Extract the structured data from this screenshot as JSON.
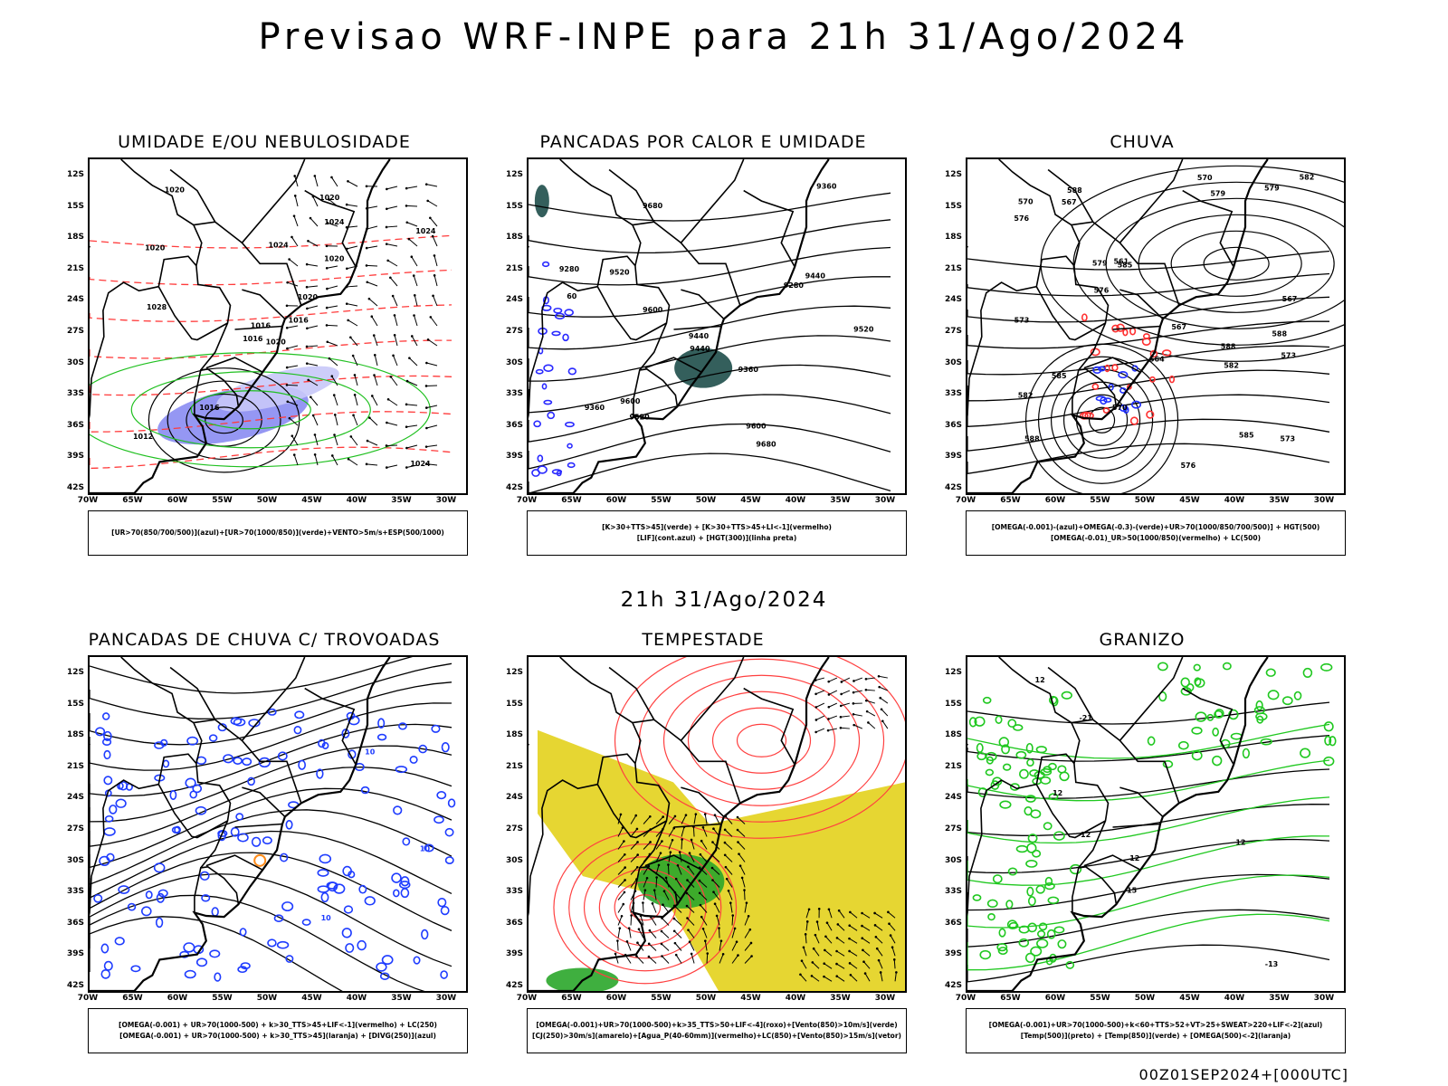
{
  "header": {
    "title": "Previsao WRF-INPE  para 21h 31/Ago/2024",
    "subtitle": "21h 31/Ago/2024",
    "footer": "00Z01SEP2024+[000UTC]"
  },
  "axes": {
    "lat_labels": [
      "12S",
      "15S",
      "18S",
      "21S",
      "24S",
      "27S",
      "30S",
      "33S",
      "36S",
      "39S",
      "42S"
    ],
    "lon_labels": [
      "70W",
      "65W",
      "60W",
      "55W",
      "50W",
      "45W",
      "40W",
      "35W",
      "30W"
    ]
  },
  "panels": [
    {
      "id": "umidade",
      "title": "UMIDADE E/OU NEBULOSIDADE",
      "legend": [
        "[UR>70(850/700/500)](azul)+[UR>70(1000/850)](verde)+VENTO>5m/s+ESP(500/1000)"
      ],
      "fill_colors": [
        "#8a8cf2",
        "#c8c8f8"
      ],
      "contour_colors": [
        "#ff3b3b",
        "#20c020",
        "#000000"
      ],
      "labels": [
        "1020",
        "1020",
        "1016",
        "1012",
        "1020",
        "1016",
        "1020",
        "1024",
        "1024",
        "1016",
        "1020",
        "1024",
        "1028",
        "1024",
        "1016",
        "1020"
      ]
    },
    {
      "id": "pancadas-calor",
      "title": "PANCADAS POR CALOR E UMIDADE",
      "legend": [
        "[K>30+TTS>45](verde) + [K>30+TTS>45+LI<-1](vermelho)",
        "[LIF](cont.azul) + [HGT(300)](linha preta)"
      ],
      "fill_colors": [
        "#1e4e4a"
      ],
      "contour_colors": [
        "#000000",
        "#2a2aff"
      ],
      "labels": [
        "9680",
        "9680",
        "9600",
        "9520",
        "9440",
        "9600",
        "9520",
        "9600",
        "9440",
        "9520",
        "9360",
        "9280",
        "9440",
        "9360",
        "9280",
        "9360",
        "60"
      ]
    },
    {
      "id": "chuva",
      "title": "CHUVA",
      "legend": [
        "[OMEGA(-0.001)-(azul)+OMEGA(-0.3)-(verde)+UR>70(1000/850/700/500)] + HGT(500)",
        "[OMEGA(-0.01)_UR>50(1000/850)(vermelho) + LC(500)"
      ],
      "fill_colors": [
        "#ff3030",
        "#2030ff"
      ],
      "contour_colors": [
        "#000000"
      ],
      "labels": [
        "588",
        "588",
        "588",
        "588",
        "585",
        "585",
        "582",
        "579",
        "579",
        "576",
        "576",
        "573",
        "570",
        "573",
        "570",
        "567",
        "564",
        "567",
        "561",
        "585",
        "582",
        "579",
        "576",
        "573",
        "570",
        "567",
        "582"
      ]
    },
    {
      "id": "pancadas-trovoadas",
      "title": "PANCADAS DE CHUVA C/ TROVOADAS",
      "legend": [
        "[OMEGA(-0.001) + UR>70(1000-500) + k>30_TTS>45+LIF<-1](vermelho) + LC(250)",
        "[OMEGA(-0.001) + UR>70(1000-500) + k>30_TTS>45](laranja) + [DIVG(250)](azul)"
      ],
      "fill_colors": [
        "#ff8c1a"
      ],
      "contour_colors": [
        "#1e3cff",
        "#000000"
      ],
      "labels": [
        "10",
        "10",
        "10"
      ]
    },
    {
      "id": "tempestade",
      "title": "TEMPESTADE",
      "legend": [
        "[OMEGA(-0.001)+UR>70(1000-500)+k>35_TTS>50+LIF<-4](roxo)+[Vento(850)>10m/s](verde)",
        "[CJ(250)>30m/s](amarelo)+[Agua_P(40-60mm)](vermelho)+LC(850)+[Vento(850)>15m/s](vetor)"
      ],
      "fill_colors": [
        "#e6d632",
        "#2aa62a"
      ],
      "contour_colors": [
        "#ff4040"
      ],
      "labels": []
    },
    {
      "id": "granizo",
      "title": "GRANIZO",
      "legend": [
        "[OMEGA(-0.001)+UR>70(1000-500)+k<60+TTS>52+VT>25+SWEAT>220+LIF<-2](azul)",
        "[Temp(500)](preto) + [Temp(850)](verde) + [OMEGA(500)<-2](laranja)"
      ],
      "fill_colors": [],
      "contour_colors": [
        "#20c820",
        "#000000"
      ],
      "labels": [
        "12",
        "12",
        "12",
        "12",
        "-13",
        "-21",
        "-15",
        "12"
      ]
    }
  ]
}
